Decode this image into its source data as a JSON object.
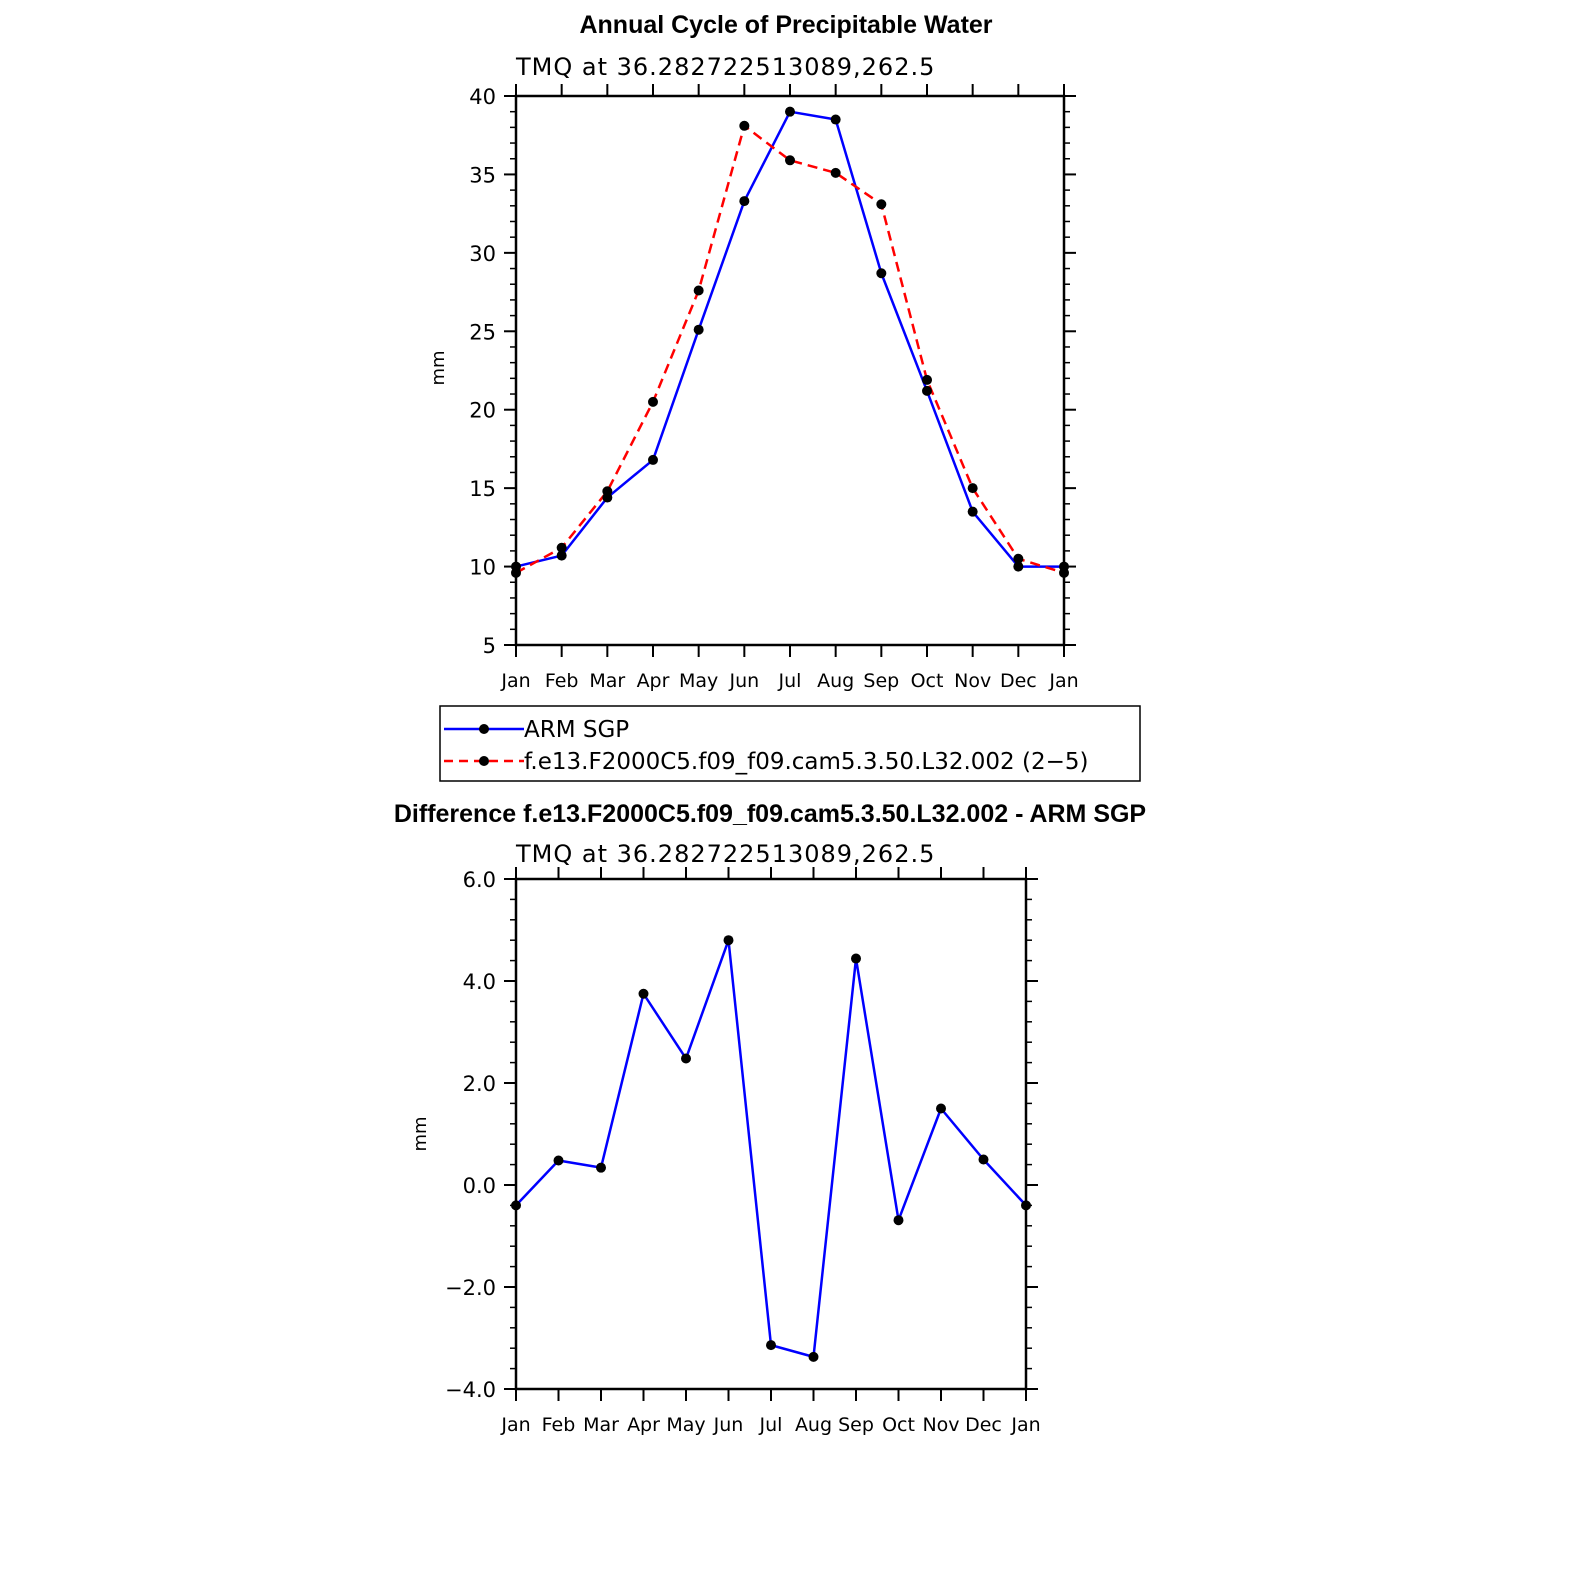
{
  "chart_data": [
    {
      "type": "line",
      "title": "Annual Cycle of Precipitable Water",
      "subtitle": "TMQ at 36.282722513089,262.5",
      "xlabel": "",
      "ylabel": "mm",
      "categories": [
        "Jan",
        "Feb",
        "Mar",
        "Apr",
        "May",
        "Jun",
        "Jul",
        "Aug",
        "Sep",
        "Oct",
        "Nov",
        "Dec",
        "Jan"
      ],
      "ylim": [
        5,
        40
      ],
      "yticks": [
        5,
        10,
        15,
        20,
        25,
        30,
        35,
        40
      ],
      "ytick_labels": [
        "5",
        "10",
        "15",
        "20",
        "25",
        "30",
        "35",
        "40"
      ],
      "grid": false,
      "legend_position": "bottom",
      "series": [
        {
          "name": "ARM SGP",
          "color": "#0000ff",
          "style": "solid",
          "values": [
            10.0,
            10.7,
            14.4,
            16.8,
            25.1,
            33.3,
            39.0,
            38.5,
            28.7,
            21.2,
            13.5,
            10.0,
            10.0
          ]
        },
        {
          "name": "f.e13.F2000C5.f09_f09.cam5.3.50.L32.002 (2−5)",
          "color": "#ff0000",
          "style": "dashed",
          "values": [
            9.6,
            11.2,
            14.8,
            20.5,
            27.6,
            38.1,
            35.9,
            35.1,
            33.1,
            21.9,
            15.0,
            10.5,
            9.6
          ]
        }
      ]
    },
    {
      "type": "line",
      "title": "Difference f.e13.F2000C5.f09_f09.cam5.3.50.L32.002 - ARM SGP",
      "subtitle": "TMQ at 36.282722513089,262.5",
      "xlabel": "",
      "ylabel": "mm",
      "categories": [
        "Jan",
        "Feb",
        "Mar",
        "Apr",
        "May",
        "Jun",
        "Jul",
        "Aug",
        "Sep",
        "Oct",
        "Nov",
        "Dec",
        "Jan"
      ],
      "ylim": [
        -4.0,
        6.0
      ],
      "yticks": [
        -4.0,
        -2.0,
        0.0,
        2.0,
        4.0,
        6.0
      ],
      "ytick_labels": [
        "−4.0",
        "−2.0",
        "0.0",
        "2.0",
        "4.0",
        "6.0"
      ],
      "grid": false,
      "series": [
        {
          "name": "Difference",
          "color": "#0000ff",
          "style": "solid",
          "values": [
            -0.4,
            0.48,
            0.34,
            3.75,
            2.48,
            4.8,
            -3.14,
            -3.37,
            4.44,
            -0.69,
            1.5,
            0.5,
            -0.4
          ]
        }
      ]
    }
  ]
}
